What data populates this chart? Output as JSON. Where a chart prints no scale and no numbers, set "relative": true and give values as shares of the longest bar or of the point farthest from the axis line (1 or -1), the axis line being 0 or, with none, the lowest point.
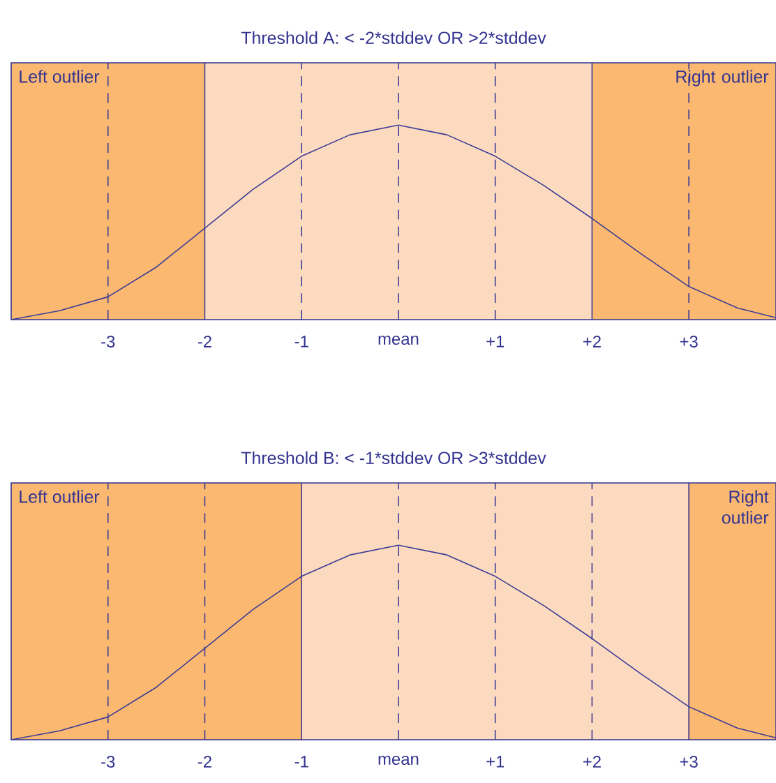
{
  "chart_data": [
    {
      "type": "line",
      "title": "Threshold A:  < -2*stddev  OR  >2*stddev",
      "relative": true,
      "tick_labels": "x",
      "grid": false,
      "xlim": [
        -4,
        3.9
      ],
      "xticks": [
        -3,
        -2,
        -1,
        {
          "value": 0,
          "label": "mean"
        },
        {
          "value": 1,
          "label": "+1"
        },
        {
          "value": 2,
          "label": "+2"
        },
        {
          "value": 3,
          "label": "+3"
        }
      ],
      "x": [
        -4,
        -3.5,
        -3,
        -2.5,
        -2,
        -1.5,
        -1,
        -0.5,
        0,
        0.5,
        1,
        1.5,
        2,
        2.5,
        3,
        3.5,
        3.9
      ],
      "series": [
        {
          "color": "#3c3c96",
          "line_style": "solid",
          "values": [
            0,
            0.046,
            0.117,
            0.27,
            0.47,
            0.67,
            0.84,
            0.95,
            1,
            0.95,
            0.84,
            0.69,
            0.52,
            0.34,
            0.17,
            0.06,
            0.01
          ]
        }
      ],
      "bands": [
        {
          "axis": "x",
          "from": -4,
          "to": -2,
          "label": "Left outlier",
          "color": "#fbb870"
        },
        {
          "axis": "x",
          "from": -2,
          "to": 2,
          "color": "#fcdabf"
        },
        {
          "axis": "x",
          "from": 2,
          "to": 3.9,
          "label": "Right outlier",
          "color": "#fbb870"
        }
      ],
      "ref_lines": [
        {
          "axis": "x",
          "value": -3,
          "line_style": "dashed",
          "color": "#3c3c96"
        },
        {
          "axis": "x",
          "value": -2,
          "line_style": "solid",
          "color": "#3c3c96"
        },
        {
          "axis": "x",
          "value": -1,
          "line_style": "dashed",
          "color": "#3c3c96"
        },
        {
          "axis": "x",
          "value": 0,
          "line_style": "dashed",
          "color": "#3c3c96"
        },
        {
          "axis": "x",
          "value": 1,
          "line_style": "dashed",
          "color": "#3c3c96"
        },
        {
          "axis": "x",
          "value": 2,
          "line_style": "solid",
          "color": "#3c3c96"
        },
        {
          "axis": "x",
          "value": 3,
          "line_style": "dashed",
          "color": "#3c3c96"
        }
      ]
    },
    {
      "type": "line",
      "title": "Threshold B:  < -1*stddev  OR  >3*stddev",
      "relative": true,
      "tick_labels": "x",
      "grid": false,
      "xlim": [
        -4,
        3.9
      ],
      "xticks": [
        -3,
        -2,
        -1,
        {
          "value": 0,
          "label": "mean"
        },
        {
          "value": 1,
          "label": "+1"
        },
        {
          "value": 2,
          "label": "+2"
        },
        {
          "value": 3,
          "label": "+3"
        }
      ],
      "x": [
        -4,
        -3.5,
        -3,
        -2.5,
        -2,
        -1.5,
        -1,
        -0.5,
        0,
        0.5,
        1,
        1.5,
        2,
        2.5,
        3,
        3.5,
        3.9
      ],
      "series": [
        {
          "color": "#3c3c96",
          "line_style": "solid",
          "values": [
            0,
            0.046,
            0.117,
            0.27,
            0.47,
            0.67,
            0.84,
            0.95,
            1,
            0.95,
            0.84,
            0.69,
            0.52,
            0.34,
            0.17,
            0.06,
            0.01
          ]
        }
      ],
      "bands": [
        {
          "axis": "x",
          "from": -4,
          "to": -1,
          "label": "Left outlier",
          "color": "#fbb870"
        },
        {
          "axis": "x",
          "from": -1,
          "to": 3,
          "color": "#fcdabf"
        },
        {
          "axis": "x",
          "from": 3,
          "to": 3.9,
          "label": "Right outlier",
          "color": "#fbb870"
        }
      ],
      "ref_lines": [
        {
          "axis": "x",
          "value": -3,
          "line_style": "dashed",
          "color": "#3c3c96"
        },
        {
          "axis": "x",
          "value": -2,
          "line_style": "dashed",
          "color": "#3c3c96"
        },
        {
          "axis": "x",
          "value": -1,
          "line_style": "solid",
          "color": "#3c3c96"
        },
        {
          "axis": "x",
          "value": 0,
          "line_style": "dashed",
          "color": "#3c3c96"
        },
        {
          "axis": "x",
          "value": 1,
          "line_style": "dashed",
          "color": "#3c3c96"
        },
        {
          "axis": "x",
          "value": 2,
          "line_style": "dashed",
          "color": "#3c3c96"
        },
        {
          "axis": "x",
          "value": 3,
          "line_style": "solid",
          "color": "#3c3c96"
        }
      ]
    }
  ]
}
